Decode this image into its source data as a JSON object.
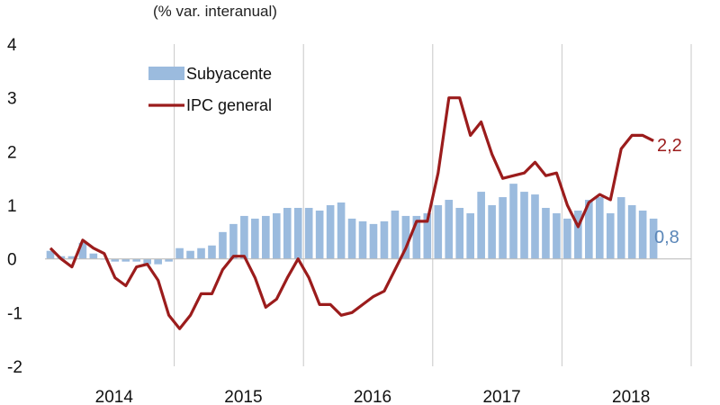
{
  "chart_data": {
    "type": "bar+line",
    "subtitle": "(% var. interanual)",
    "ylim": [
      -2,
      4
    ],
    "y_ticks": [
      "4",
      "3",
      "2",
      "1",
      "0",
      "-1",
      "-2"
    ],
    "x_tick_labels": [
      "2014",
      "2015",
      "2016",
      "2017",
      "2018"
    ],
    "legend_position": "top-left",
    "grid": "vertical-at-years",
    "series": [
      {
        "name": "Subyacente",
        "kind": "bar",
        "color": "#9bbbde",
        "end_label": "0,8",
        "values": [
          0.15,
          0.05,
          0.05,
          0.3,
          0.1,
          0.0,
          -0.05,
          -0.05,
          -0.05,
          -0.1,
          -0.1,
          -0.05,
          0.2,
          0.15,
          0.2,
          0.25,
          0.5,
          0.65,
          0.8,
          0.75,
          0.8,
          0.85,
          0.95,
          0.95,
          0.95,
          0.9,
          1.0,
          1.05,
          0.75,
          0.7,
          0.65,
          0.7,
          0.9,
          0.8,
          0.8,
          0.85,
          1.0,
          1.1,
          0.95,
          0.85,
          1.25,
          1.0,
          1.15,
          1.4,
          1.25,
          1.2,
          0.95,
          0.85,
          0.75,
          0.9,
          1.1,
          1.15,
          0.85,
          1.15,
          1.0,
          0.9,
          0.75
        ]
      },
      {
        "name": "IPC general",
        "kind": "line",
        "color": "#9b1c1c",
        "end_label": "2,2",
        "values": [
          0.2,
          0.0,
          -0.15,
          0.35,
          0.2,
          0.1,
          -0.35,
          -0.5,
          -0.15,
          -0.1,
          -0.4,
          -1.05,
          -1.3,
          -1.05,
          -0.65,
          -0.65,
          -0.2,
          0.05,
          0.05,
          -0.35,
          -0.9,
          -0.75,
          -0.35,
          0.0,
          -0.35,
          -0.85,
          -0.85,
          -1.05,
          -1.0,
          -0.85,
          -0.7,
          -0.6,
          -0.2,
          0.2,
          0.7,
          0.7,
          1.6,
          3.0,
          3.0,
          2.3,
          2.55,
          1.95,
          1.5,
          1.55,
          1.6,
          1.8,
          1.55,
          1.6,
          1.0,
          0.6,
          1.05,
          1.2,
          1.1,
          2.05,
          2.3,
          2.3,
          2.2
        ]
      }
    ]
  }
}
